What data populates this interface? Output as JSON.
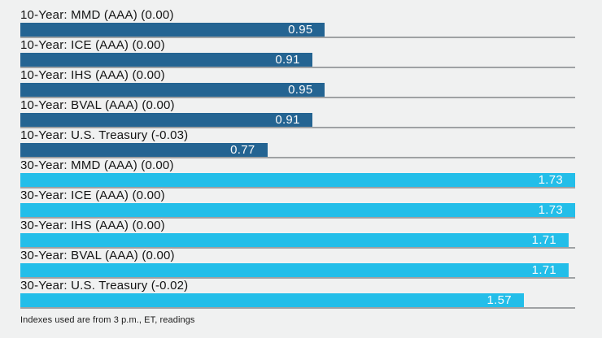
{
  "chart_data": {
    "type": "bar",
    "orientation": "horizontal",
    "categories": [
      "10-Year: MMD (AAA) (0.00)",
      "10-Year: ICE (AAA) (0.00)",
      "10-Year: IHS (AAA) (0.00)",
      "10-Year: BVAL (AAA) (0.00)",
      "10-Year: U.S. Treasury (-0.03)",
      "30-Year: MMD (AAA) (0.00)",
      "30-Year: ICE (AAA) (0.00)",
      "30-Year: IHS (AAA) (0.00)",
      "30-Year: BVAL (AAA) (0.00)",
      "30-Year: U.S. Treasury (-0.02)"
    ],
    "bars": [
      {
        "label": "10-Year: MMD (AAA) (0.00)",
        "value": 0.95,
        "display_value": "0.95",
        "group": "10-year"
      },
      {
        "label": "10-Year: ICE (AAA) (0.00)",
        "value": 0.91,
        "display_value": "0.91",
        "group": "10-year"
      },
      {
        "label": "10-Year: IHS (AAA) (0.00)",
        "value": 0.95,
        "display_value": "0.95",
        "group": "10-year"
      },
      {
        "label": "10-Year: BVAL (AAA) (0.00)",
        "value": 0.91,
        "display_value": "0.91",
        "group": "10-year"
      },
      {
        "label": "10-Year: U.S. Treasury (-0.03)",
        "value": 0.77,
        "display_value": "0.77",
        "group": "10-year"
      },
      {
        "label": "30-Year: MMD (AAA) (0.00)",
        "value": 1.73,
        "display_value": "1.73",
        "group": "30-year"
      },
      {
        "label": "30-Year: ICE (AAA) (0.00)",
        "value": 1.73,
        "display_value": "1.73",
        "group": "30-year"
      },
      {
        "label": "30-Year: IHS (AAA) (0.00)",
        "value": 1.71,
        "display_value": "1.71",
        "group": "30-year"
      },
      {
        "label": "30-Year: BVAL (AAA) (0.00)",
        "value": 1.71,
        "display_value": "1.71",
        "group": "30-year"
      },
      {
        "label": "30-Year: U.S. Treasury (-0.02)",
        "value": 1.57,
        "display_value": "1.57",
        "group": "30-year"
      }
    ],
    "xlim": [
      0,
      1.73
    ],
    "grid": false,
    "legend": false,
    "value_labels_position": "inside-right",
    "footnote": "Indexes used are from 3 p.m., ET, readings",
    "colors": {
      "ten_year_bar": "#246492",
      "thirty_year_bar": "#23bee9",
      "separator_line": "#9fa2a4",
      "background": "#f0f1f1",
      "label_text": "#141414",
      "value_text": "#fafafa"
    }
  }
}
